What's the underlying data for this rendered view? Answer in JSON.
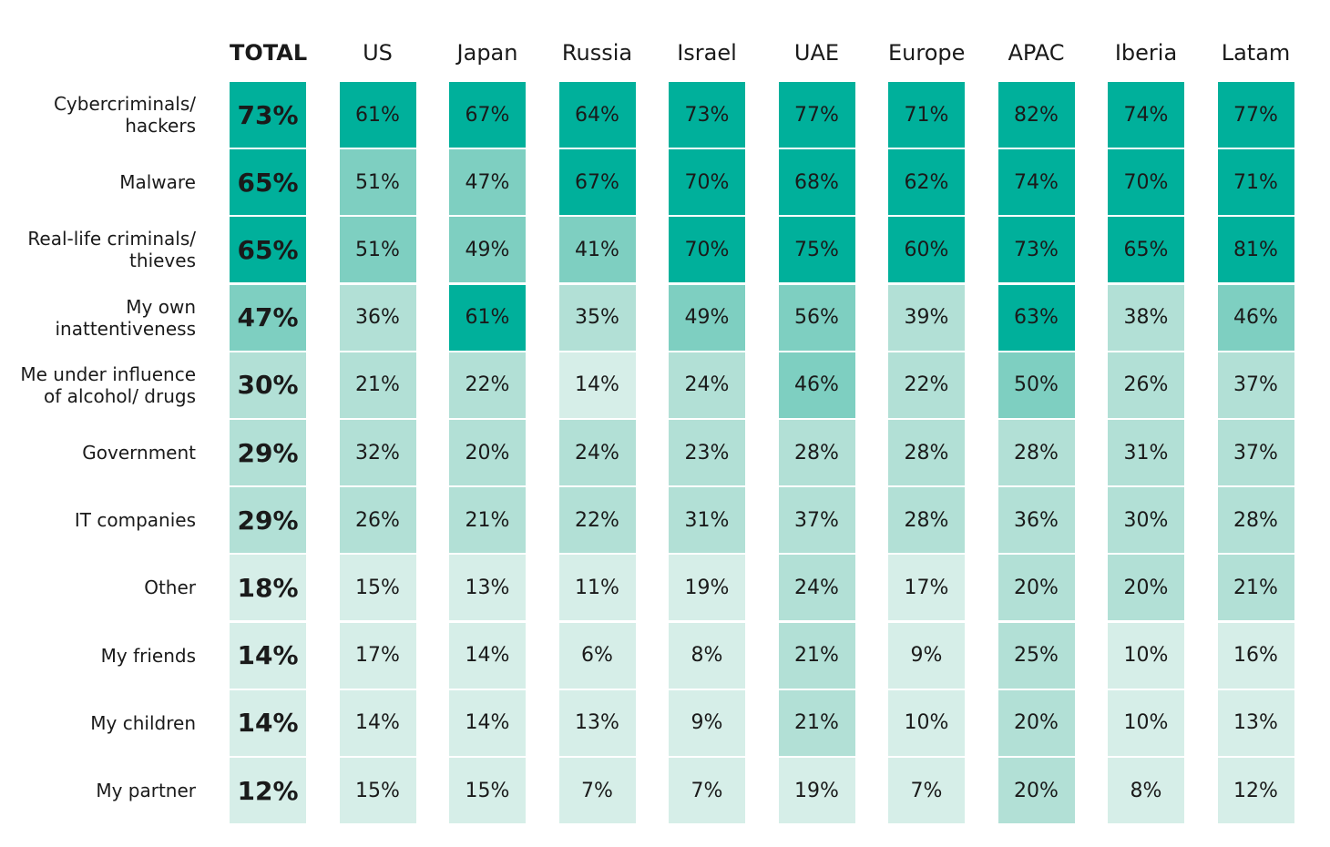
{
  "chart_data": {
    "type": "heatmap",
    "columns": [
      "TOTAL",
      "US",
      "Japan",
      "Russia",
      "Israel",
      "UAE",
      "Europe",
      "APAC",
      "Iberia",
      "Latam"
    ],
    "rows": [
      {
        "label_lines": [
          "Cybercriminals/",
          "hackers"
        ],
        "values": [
          73,
          61,
          67,
          64,
          73,
          77,
          71,
          82,
          74,
          77
        ]
      },
      {
        "label_lines": [
          "Malware"
        ],
        "values": [
          65,
          51,
          47,
          67,
          70,
          68,
          62,
          74,
          70,
          71
        ]
      },
      {
        "label_lines": [
          "Real-life criminals/",
          "thieves"
        ],
        "values": [
          65,
          51,
          49,
          41,
          70,
          75,
          60,
          73,
          65,
          81
        ]
      },
      {
        "label_lines": [
          "My own",
          "inattentiveness"
        ],
        "values": [
          47,
          36,
          61,
          35,
          49,
          56,
          39,
          63,
          38,
          46
        ]
      },
      {
        "label_lines": [
          "Me under influence",
          "of alcohol/ drugs"
        ],
        "values": [
          30,
          21,
          22,
          14,
          24,
          46,
          22,
          50,
          26,
          37
        ]
      },
      {
        "label_lines": [
          "Government"
        ],
        "values": [
          29,
          32,
          20,
          24,
          23,
          28,
          28,
          28,
          31,
          37
        ]
      },
      {
        "label_lines": [
          "IT companies"
        ],
        "values": [
          29,
          26,
          21,
          22,
          31,
          37,
          28,
          36,
          30,
          28
        ]
      },
      {
        "label_lines": [
          "Other"
        ],
        "values": [
          18,
          15,
          13,
          11,
          19,
          24,
          17,
          20,
          20,
          21
        ]
      },
      {
        "label_lines": [
          "My friends"
        ],
        "values": [
          14,
          17,
          14,
          6,
          8,
          21,
          9,
          25,
          10,
          16
        ]
      },
      {
        "label_lines": [
          "My children"
        ],
        "values": [
          14,
          14,
          14,
          13,
          9,
          21,
          10,
          20,
          10,
          13
        ]
      },
      {
        "label_lines": [
          "My partner"
        ],
        "values": [
          12,
          15,
          15,
          7,
          7,
          19,
          7,
          20,
          8,
          12
        ]
      }
    ],
    "value_suffix": "%",
    "color_scale": [
      {
        "min": 60,
        "color": "#00b09b"
      },
      {
        "min": 40,
        "color": "#7ecfc1"
      },
      {
        "min": 20,
        "color": "#b2e0d6"
      },
      {
        "min": 0,
        "color": "#d6eee8"
      }
    ]
  }
}
